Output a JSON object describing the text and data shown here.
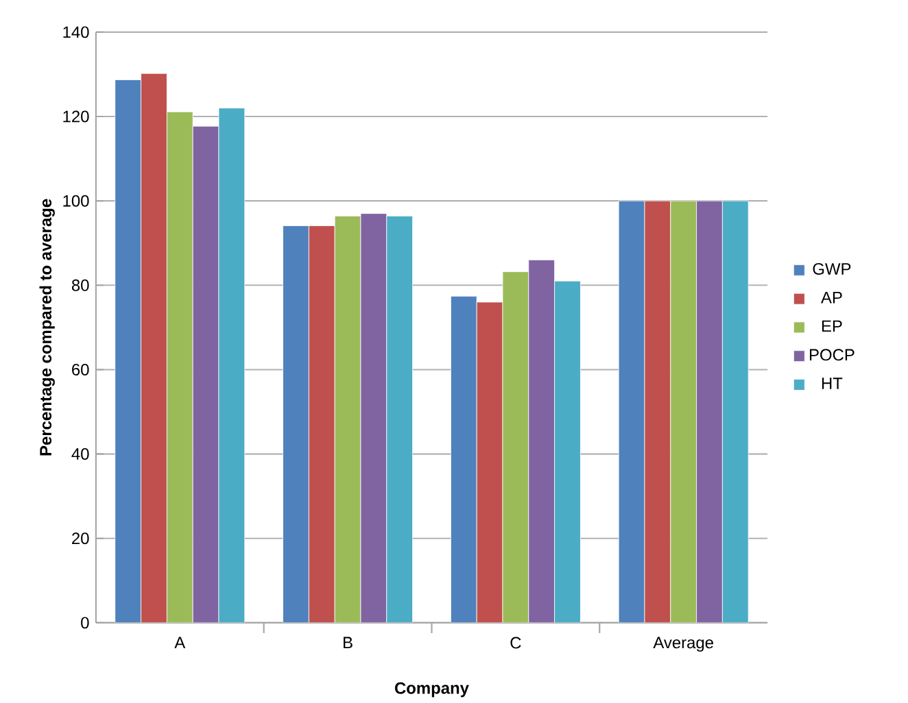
{
  "chart_data": {
    "type": "bar",
    "xlabel": "Company",
    "ylabel": "Percentage compared to average",
    "categories": [
      "A",
      "B",
      "C",
      "Average"
    ],
    "series": [
      {
        "name": "GWP",
        "color": "#4f81bd",
        "values": [
          128.7,
          94.1,
          77.4,
          100
        ]
      },
      {
        "name": "AP",
        "color": "#c0504d",
        "values": [
          130.2,
          94.1,
          76,
          100
        ]
      },
      {
        "name": "EP",
        "color": "#9bbb59",
        "values": [
          121.1,
          96.4,
          83.2,
          100
        ]
      },
      {
        "name": "POCP",
        "color": "#8064a2",
        "values": [
          117.7,
          97,
          86,
          100
        ]
      },
      {
        "name": "HT",
        "color": "#4bacc6",
        "values": [
          122,
          96.4,
          81,
          100
        ]
      }
    ],
    "ylim": [
      0,
      140
    ],
    "yticks": [
      0,
      20,
      40,
      60,
      80,
      100,
      120,
      140
    ],
    "grid": "y",
    "legend": "right"
  }
}
